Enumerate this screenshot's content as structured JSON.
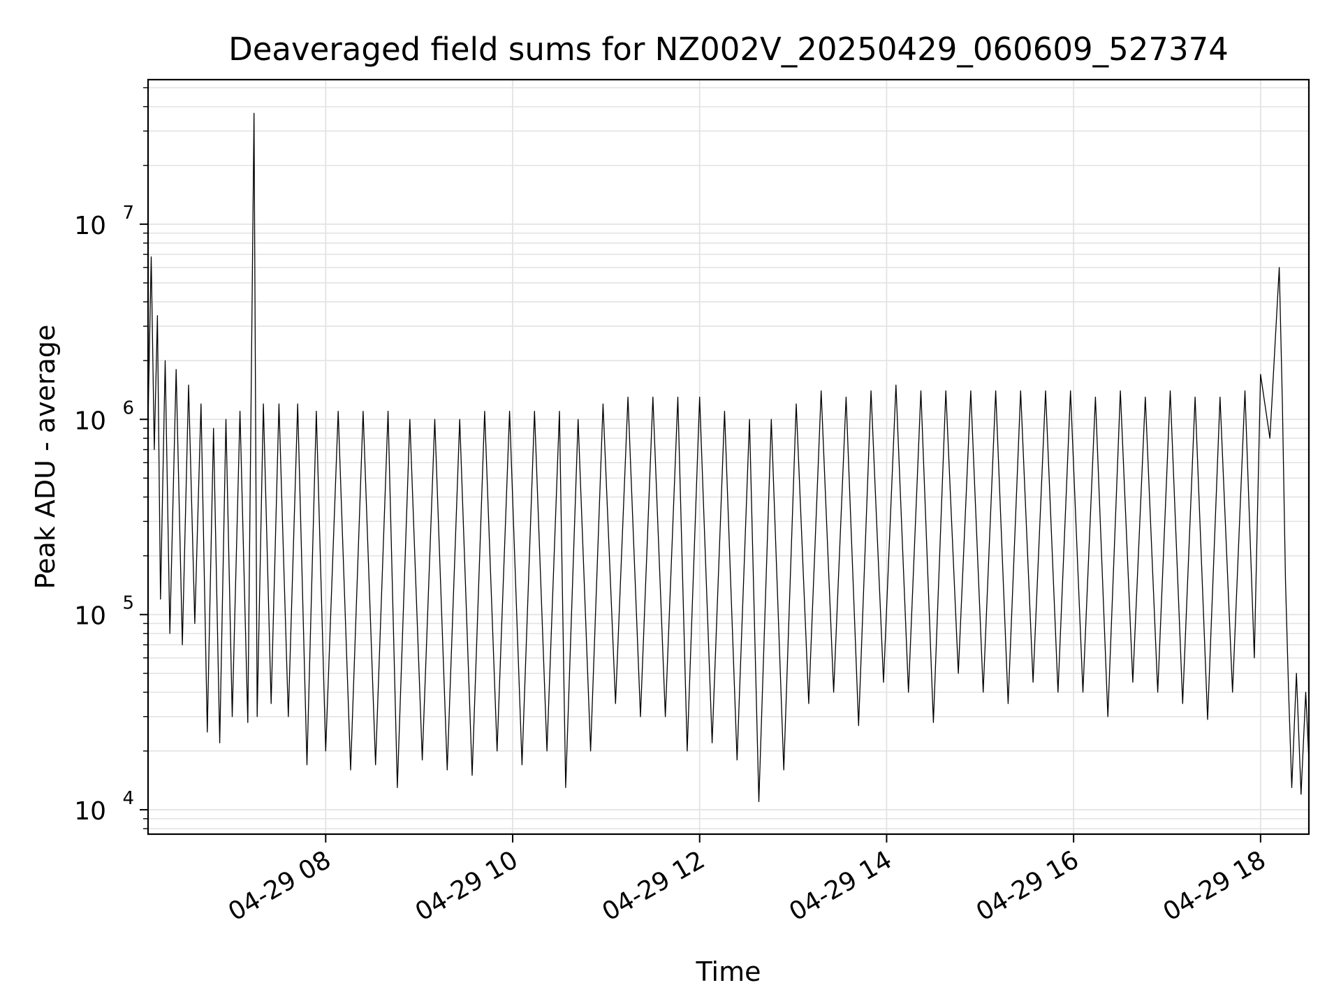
{
  "chart_data": {
    "type": "line",
    "title": "Deaveraged field sums for NZ002V_20250429_060609_527374",
    "xlabel": "Time",
    "ylabel": "Peak ADU - average",
    "yscale": "log",
    "ylim": [
      7500,
      55000000
    ],
    "xlim": [
      "2025-04-29 06:06",
      "2025-04-29 18:31"
    ],
    "grid": true,
    "line_color": "#000000",
    "grid_color": "#e3e3e3",
    "xticks": [
      {
        "x": "2025-04-29 08:00",
        "label": "04-29 08"
      },
      {
        "x": "2025-04-29 10:00",
        "label": "04-29 10"
      },
      {
        "x": "2025-04-29 12:00",
        "label": "04-29 12"
      },
      {
        "x": "2025-04-29 14:00",
        "label": "04-29 14"
      },
      {
        "x": "2025-04-29 16:00",
        "label": "04-29 16"
      },
      {
        "x": "2025-04-29 18:00",
        "label": "04-29 18"
      }
    ],
    "yticks": [
      {
        "y": 10000,
        "base": "10",
        "exp": "4"
      },
      {
        "y": 100000,
        "base": "10",
        "exp": "5"
      },
      {
        "y": 1000000,
        "base": "10",
        "exp": "6"
      },
      {
        "y": 10000000,
        "base": "10",
        "exp": "7"
      }
    ],
    "series": [
      {
        "points": [
          [
            "2025-04-29 06:06",
            1000000
          ],
          [
            "2025-04-29 06:08",
            6800000
          ],
          [
            "2025-04-29 06:10",
            700000
          ],
          [
            "2025-04-29 06:12",
            3400000
          ],
          [
            "2025-04-29 06:14",
            120000
          ],
          [
            "2025-04-29 06:17",
            2000000
          ],
          [
            "2025-04-29 06:20",
            80000
          ],
          [
            "2025-04-29 06:24",
            1800000
          ],
          [
            "2025-04-29 06:28",
            70000
          ],
          [
            "2025-04-29 06:32",
            1500000
          ],
          [
            "2025-04-29 06:36",
            90000
          ],
          [
            "2025-04-29 06:40",
            1200000
          ],
          [
            "2025-04-29 06:44",
            25000
          ],
          [
            "2025-04-29 06:48",
            900000
          ],
          [
            "2025-04-29 06:52",
            22000
          ],
          [
            "2025-04-29 06:56",
            1000000
          ],
          [
            "2025-04-29 07:00",
            30000
          ],
          [
            "2025-04-29 07:05",
            1100000
          ],
          [
            "2025-04-29 07:10",
            28000
          ],
          [
            "2025-04-29 07:14",
            37000000
          ],
          [
            "2025-04-29 07:16",
            30000
          ],
          [
            "2025-04-29 07:20",
            1200000
          ],
          [
            "2025-04-29 07:25",
            35000
          ],
          [
            "2025-04-29 07:30",
            1200000
          ],
          [
            "2025-04-29 07:36",
            30000
          ],
          [
            "2025-04-29 07:42",
            1200000
          ],
          [
            "2025-04-29 07:48",
            17000
          ],
          [
            "2025-04-29 07:54",
            1100000
          ],
          [
            "2025-04-29 08:00",
            20000
          ],
          [
            "2025-04-29 08:08",
            1100000
          ],
          [
            "2025-04-29 08:16",
            16000
          ],
          [
            "2025-04-29 08:24",
            1100000
          ],
          [
            "2025-04-29 08:32",
            17000
          ],
          [
            "2025-04-29 08:40",
            1100000
          ],
          [
            "2025-04-29 08:46",
            13000
          ],
          [
            "2025-04-29 08:54",
            1000000
          ],
          [
            "2025-04-29 09:02",
            18000
          ],
          [
            "2025-04-29 09:10",
            1000000
          ],
          [
            "2025-04-29 09:18",
            16000
          ],
          [
            "2025-04-29 09:26",
            1000000
          ],
          [
            "2025-04-29 09:34",
            15000
          ],
          [
            "2025-04-29 09:42",
            1100000
          ],
          [
            "2025-04-29 09:50",
            20000
          ],
          [
            "2025-04-29 09:58",
            1100000
          ],
          [
            "2025-04-29 10:06",
            17000
          ],
          [
            "2025-04-29 10:14",
            1100000
          ],
          [
            "2025-04-29 10:22",
            20000
          ],
          [
            "2025-04-29 10:30",
            1100000
          ],
          [
            "2025-04-29 10:34",
            13000
          ],
          [
            "2025-04-29 10:42",
            1000000
          ],
          [
            "2025-04-29 10:50",
            20000
          ],
          [
            "2025-04-29 10:58",
            1200000
          ],
          [
            "2025-04-29 11:06",
            35000
          ],
          [
            "2025-04-29 11:14",
            1300000
          ],
          [
            "2025-04-29 11:22",
            30000
          ],
          [
            "2025-04-29 11:30",
            1300000
          ],
          [
            "2025-04-29 11:38",
            30000
          ],
          [
            "2025-04-29 11:46",
            1300000
          ],
          [
            "2025-04-29 11:52",
            20000
          ],
          [
            "2025-04-29 12:00",
            1300000
          ],
          [
            "2025-04-29 12:08",
            22000
          ],
          [
            "2025-04-29 12:16",
            1100000
          ],
          [
            "2025-04-29 12:24",
            18000
          ],
          [
            "2025-04-29 12:32",
            1000000
          ],
          [
            "2025-04-29 12:38",
            11000
          ],
          [
            "2025-04-29 12:46",
            1000000
          ],
          [
            "2025-04-29 12:54",
            16000
          ],
          [
            "2025-04-29 13:02",
            1200000
          ],
          [
            "2025-04-29 13:10",
            35000
          ],
          [
            "2025-04-29 13:18",
            1400000
          ],
          [
            "2025-04-29 13:26",
            40000
          ],
          [
            "2025-04-29 13:34",
            1300000
          ],
          [
            "2025-04-29 13:42",
            27000
          ],
          [
            "2025-04-29 13:50",
            1400000
          ],
          [
            "2025-04-29 13:58",
            45000
          ],
          [
            "2025-04-29 14:06",
            1500000
          ],
          [
            "2025-04-29 14:14",
            40000
          ],
          [
            "2025-04-29 14:22",
            1400000
          ],
          [
            "2025-04-29 14:30",
            28000
          ],
          [
            "2025-04-29 14:38",
            1400000
          ],
          [
            "2025-04-29 14:46",
            50000
          ],
          [
            "2025-04-29 14:54",
            1400000
          ],
          [
            "2025-04-29 15:02",
            40000
          ],
          [
            "2025-04-29 15:10",
            1400000
          ],
          [
            "2025-04-29 15:18",
            35000
          ],
          [
            "2025-04-29 15:26",
            1400000
          ],
          [
            "2025-04-29 15:34",
            45000
          ],
          [
            "2025-04-29 15:42",
            1400000
          ],
          [
            "2025-04-29 15:50",
            40000
          ],
          [
            "2025-04-29 15:58",
            1400000
          ],
          [
            "2025-04-29 16:06",
            40000
          ],
          [
            "2025-04-29 16:14",
            1300000
          ],
          [
            "2025-04-29 16:22",
            30000
          ],
          [
            "2025-04-29 16:30",
            1400000
          ],
          [
            "2025-04-29 16:38",
            45000
          ],
          [
            "2025-04-29 16:46",
            1300000
          ],
          [
            "2025-04-29 16:54",
            40000
          ],
          [
            "2025-04-29 17:02",
            1400000
          ],
          [
            "2025-04-29 17:10",
            35000
          ],
          [
            "2025-04-29 17:18",
            1300000
          ],
          [
            "2025-04-29 17:26",
            29000
          ],
          [
            "2025-04-29 17:34",
            1300000
          ],
          [
            "2025-04-29 17:42",
            40000
          ],
          [
            "2025-04-29 17:50",
            1400000
          ],
          [
            "2025-04-29 17:56",
            60000
          ],
          [
            "2025-04-29 18:00",
            1700000
          ],
          [
            "2025-04-29 18:06",
            800000
          ],
          [
            "2025-04-29 18:12",
            6000000
          ],
          [
            "2025-04-29 18:14",
            1200000
          ],
          [
            "2025-04-29 18:16",
            150000
          ],
          [
            "2025-04-29 18:18",
            40000
          ],
          [
            "2025-04-29 18:20",
            13000
          ],
          [
            "2025-04-29 18:23",
            50000
          ],
          [
            "2025-04-29 18:26",
            12000
          ],
          [
            "2025-04-29 18:29",
            40000
          ],
          [
            "2025-04-29 18:31",
            18000
          ]
        ]
      }
    ]
  }
}
